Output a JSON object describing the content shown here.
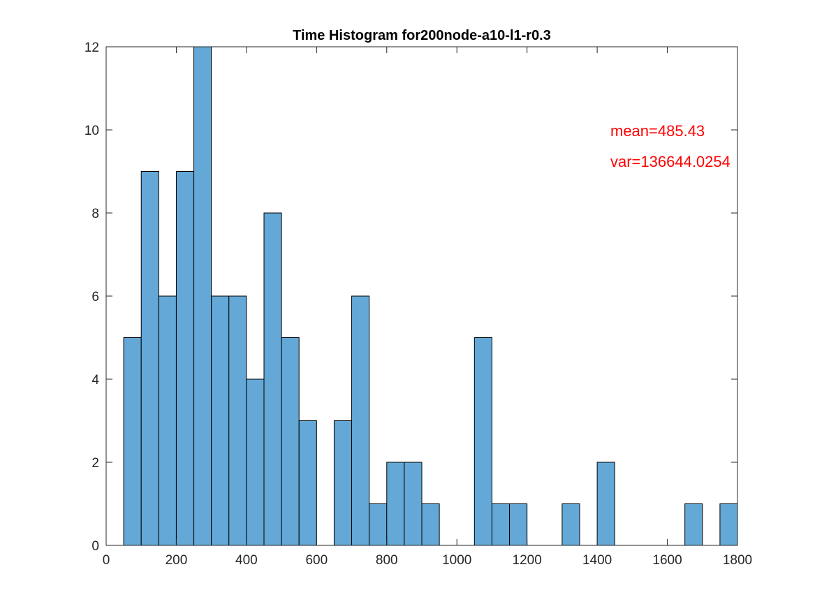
{
  "chart_data": {
    "type": "bar",
    "title": "Time Histogram for200node-a10-l1-r0.3",
    "xlabel": "",
    "ylabel": "",
    "xlim": [
      0,
      1800
    ],
    "ylim": [
      0,
      12
    ],
    "xticks": [
      0,
      200,
      400,
      600,
      800,
      1000,
      1200,
      1400,
      1600,
      1800
    ],
    "yticks": [
      0,
      2,
      4,
      6,
      8,
      10,
      12
    ],
    "bin_width": 50,
    "bins": [
      {
        "start": 50,
        "count": 5
      },
      {
        "start": 100,
        "count": 9
      },
      {
        "start": 150,
        "count": 6
      },
      {
        "start": 200,
        "count": 9
      },
      {
        "start": 250,
        "count": 12
      },
      {
        "start": 300,
        "count": 6
      },
      {
        "start": 350,
        "count": 6
      },
      {
        "start": 400,
        "count": 4
      },
      {
        "start": 450,
        "count": 8
      },
      {
        "start": 500,
        "count": 5
      },
      {
        "start": 550,
        "count": 3
      },
      {
        "start": 600,
        "count": 0
      },
      {
        "start": 650,
        "count": 3
      },
      {
        "start": 700,
        "count": 6
      },
      {
        "start": 750,
        "count": 1
      },
      {
        "start": 800,
        "count": 2
      },
      {
        "start": 850,
        "count": 2
      },
      {
        "start": 900,
        "count": 1
      },
      {
        "start": 950,
        "count": 0
      },
      {
        "start": 1000,
        "count": 0
      },
      {
        "start": 1050,
        "count": 5
      },
      {
        "start": 1100,
        "count": 1
      },
      {
        "start": 1150,
        "count": 1
      },
      {
        "start": 1200,
        "count": 0
      },
      {
        "start": 1250,
        "count": 0
      },
      {
        "start": 1300,
        "count": 1
      },
      {
        "start": 1350,
        "count": 0
      },
      {
        "start": 1400,
        "count": 2
      },
      {
        "start": 1450,
        "count": 0
      },
      {
        "start": 1500,
        "count": 0
      },
      {
        "start": 1550,
        "count": 0
      },
      {
        "start": 1600,
        "count": 0
      },
      {
        "start": 1650,
        "count": 1
      },
      {
        "start": 1700,
        "count": 0
      },
      {
        "start": 1750,
        "count": 1
      }
    ],
    "annotations": [
      "mean=485.43",
      "var=136644.0254"
    ],
    "bar_color": "#63a8d6",
    "annotation_color": "#ff0000",
    "grid": false
  }
}
